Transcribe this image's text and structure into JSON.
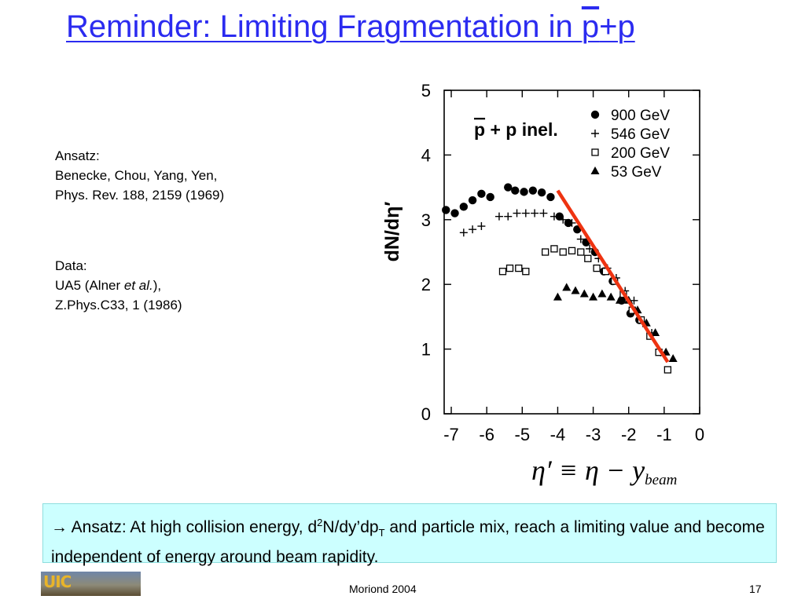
{
  "slide": {
    "title_main": "Reminder: Limiting Fragmentation in ",
    "title_pbar": "p",
    "title_tail": "+p",
    "ansatz_lines": [
      "Ansatz:",
      "Benecke, Chou, Yang, Yen,",
      "Phys. Rev. 188, 2159 (1969)"
    ],
    "data_label": "Data:",
    "data_ref_pre": "UA5 (Alner ",
    "data_ref_ital": "et al.",
    "data_ref_post": "),",
    "data_ref_line2": "Z.Phys.C33, 1 (1986)",
    "formula_lhs": "η′ ≡ η − y",
    "formula_sub": "beam",
    "note_arrow": "→",
    "note_a": " Ansatz: At high collision energy, d",
    "note_sup": "2",
    "note_b": "N/dy’dp",
    "note_sub": "T",
    "note_c": " and particle mix, reach a limiting value and become independent of energy around beam rapidity.",
    "logo_text": "UIC",
    "footer_center": "Moriond 2004",
    "footer_page": "17"
  },
  "chart_data": {
    "type": "scatter",
    "ylabel": "dN/dη′",
    "annotation_pbar": "p",
    "annotation_rest": " + p inel.",
    "x_ticks": [
      -7,
      -6,
      -5,
      -4,
      -3,
      -2,
      -1,
      0
    ],
    "y_ticks": [
      0,
      1,
      2,
      3,
      4,
      5
    ],
    "xlim": [
      -7.2,
      0
    ],
    "ylim": [
      0,
      5
    ],
    "legend_position": "top-right",
    "series": [
      {
        "name": "900 GeV",
        "marker": "circle",
        "x": [
          -7.15,
          -6.9,
          -6.65,
          -6.4,
          -6.15,
          -5.9,
          -5.4,
          -5.2,
          -4.95,
          -4.7,
          -4.45,
          -4.2,
          -3.95,
          -3.7,
          -3.45,
          -3.2,
          -2.95,
          -2.7,
          -2.45,
          -2.2,
          -1.95,
          -1.7
        ],
        "y": [
          3.15,
          3.1,
          3.2,
          3.3,
          3.4,
          3.35,
          3.5,
          3.45,
          3.43,
          3.45,
          3.42,
          3.35,
          3.05,
          2.95,
          2.85,
          2.65,
          2.5,
          2.2,
          2.05,
          1.75,
          1.55,
          1.45
        ]
      },
      {
        "name": "546 GeV",
        "marker": "plus",
        "x": [
          -6.65,
          -6.4,
          -6.15,
          -5.65,
          -5.4,
          -5.15,
          -4.9,
          -4.65,
          -4.4,
          -4.1,
          -3.85,
          -3.6,
          -3.35,
          -3.1,
          -2.85,
          -2.6,
          -2.35,
          -2.1,
          -1.85,
          -1.6,
          -1.35,
          -1.1
        ],
        "y": [
          2.8,
          2.85,
          2.9,
          3.05,
          3.05,
          3.1,
          3.1,
          3.1,
          3.1,
          3.05,
          3.0,
          2.95,
          2.7,
          2.55,
          2.4,
          2.25,
          2.1,
          1.9,
          1.75,
          1.4,
          1.25,
          0.95
        ]
      },
      {
        "name": "200 GeV",
        "marker": "square",
        "x": [
          -5.55,
          -5.35,
          -5.1,
          -4.9,
          -4.35,
          -4.1,
          -3.85,
          -3.6,
          -3.35,
          -3.15,
          -2.9,
          -2.65,
          -2.4,
          -2.15,
          -1.9,
          -1.65,
          -1.4,
          -1.15,
          -0.9
        ],
        "y": [
          2.2,
          2.25,
          2.25,
          2.2,
          2.5,
          2.55,
          2.5,
          2.52,
          2.5,
          2.4,
          2.25,
          2.2,
          2.05,
          1.85,
          1.6,
          1.45,
          1.2,
          0.95,
          0.68
        ]
      },
      {
        "name": "53 GeV",
        "marker": "triangle",
        "x": [
          -4.0,
          -3.75,
          -3.5,
          -3.25,
          -3.0,
          -2.75,
          -2.5,
          -2.25,
          -2.0,
          -1.75,
          -1.5,
          -1.25,
          -0.95,
          -0.75
        ],
        "y": [
          1.8,
          1.95,
          1.9,
          1.85,
          1.8,
          1.85,
          1.8,
          1.75,
          1.75,
          1.6,
          1.4,
          1.25,
          0.95,
          0.85
        ]
      }
    ],
    "fit_line": {
      "x": [
        -4.0,
        -0.9
      ],
      "y": [
        3.45,
        0.8
      ],
      "color": "#ee3311"
    }
  }
}
